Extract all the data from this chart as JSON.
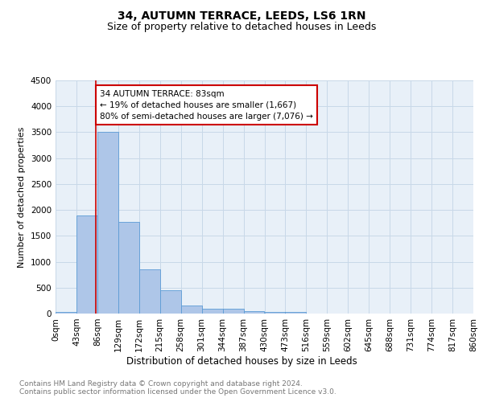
{
  "title1": "34, AUTUMN TERRACE, LEEDS, LS6 1RN",
  "title2": "Size of property relative to detached houses in Leeds",
  "xlabel": "Distribution of detached houses by size in Leeds",
  "ylabel": "Number of detached properties",
  "bin_labels": [
    "0sqm",
    "43sqm",
    "86sqm",
    "129sqm",
    "172sqm",
    "215sqm",
    "258sqm",
    "301sqm",
    "344sqm",
    "387sqm",
    "430sqm",
    "473sqm",
    "516sqm",
    "559sqm",
    "602sqm",
    "645sqm",
    "688sqm",
    "731sqm",
    "774sqm",
    "817sqm",
    "860sqm"
  ],
  "bin_edges": [
    0,
    43,
    86,
    129,
    172,
    215,
    258,
    301,
    344,
    387,
    430,
    473,
    516,
    559,
    602,
    645,
    688,
    731,
    774,
    817,
    860
  ],
  "bar_heights": [
    30,
    1900,
    3500,
    1775,
    850,
    450,
    150,
    90,
    90,
    50,
    30,
    30,
    0,
    0,
    0,
    0,
    0,
    0,
    0,
    0
  ],
  "bar_color": "#aec6e8",
  "bar_edge_color": "#5b9bd5",
  "property_line_x": 83,
  "annotation_text": "34 AUTUMN TERRACE: 83sqm\n← 19% of detached houses are smaller (1,667)\n80% of semi-detached houses are larger (7,076) →",
  "annotation_box_color": "#ffffff",
  "annotation_border_color": "#cc0000",
  "line_color": "#cc0000",
  "ylim": [
    0,
    4500
  ],
  "yticks": [
    0,
    500,
    1000,
    1500,
    2000,
    2500,
    3000,
    3500,
    4000,
    4500
  ],
  "grid_color": "#c8d8e8",
  "bg_color": "#e8f0f8",
  "footer_text": "Contains HM Land Registry data © Crown copyright and database right 2024.\nContains public sector information licensed under the Open Government Licence v3.0.",
  "title1_fontsize": 10,
  "title2_fontsize": 9,
  "xlabel_fontsize": 8.5,
  "ylabel_fontsize": 8,
  "tick_fontsize": 7.5,
  "annotation_fontsize": 7.5,
  "footer_fontsize": 6.5
}
